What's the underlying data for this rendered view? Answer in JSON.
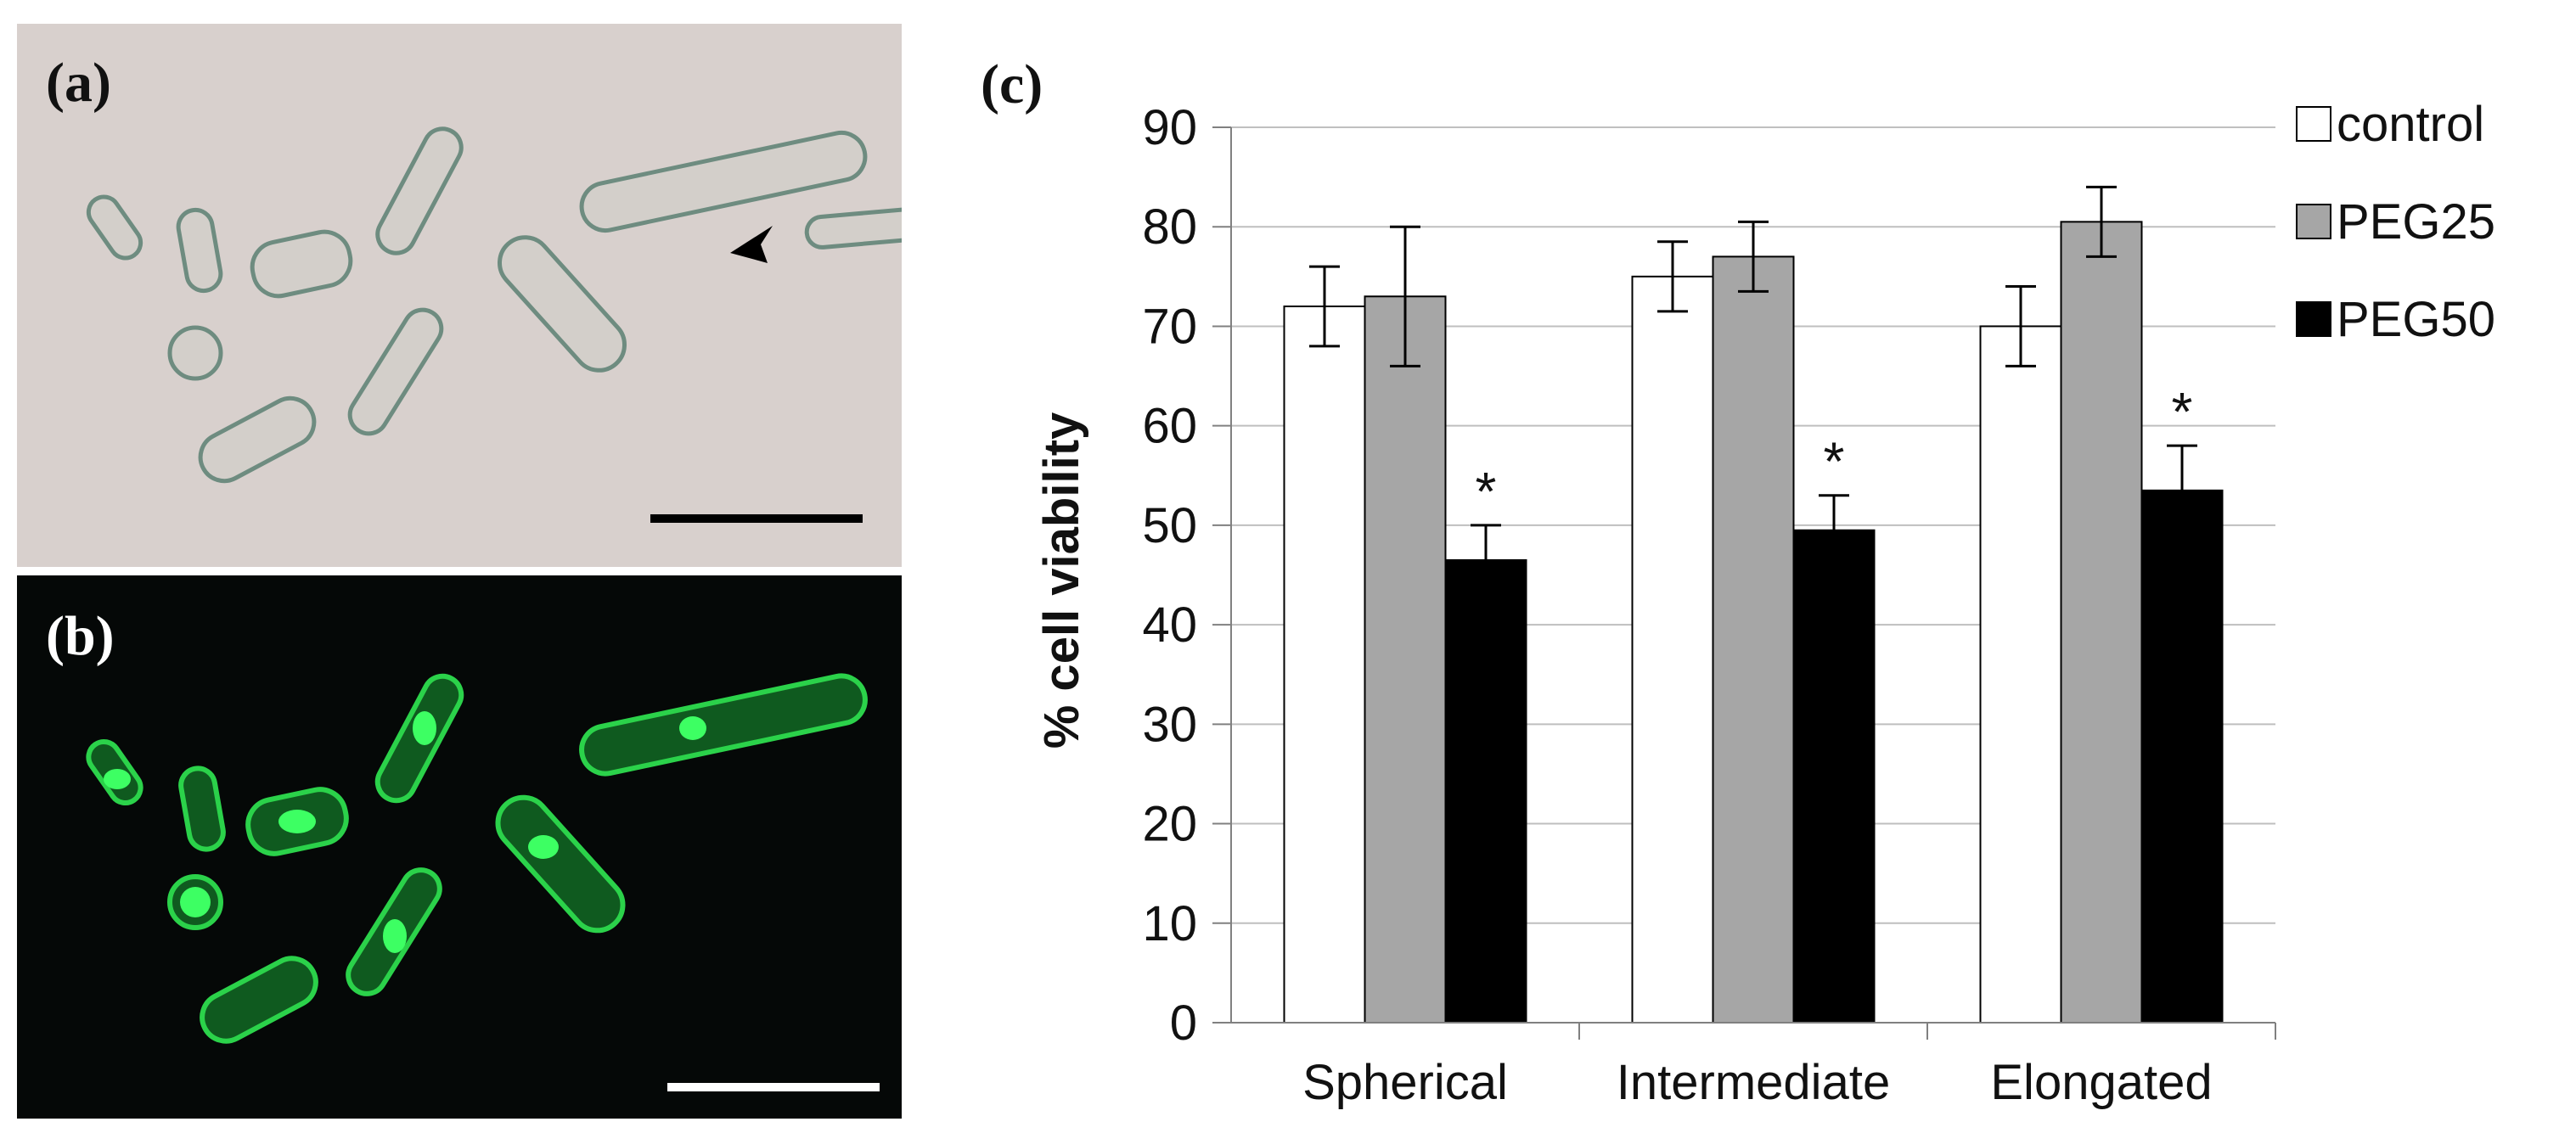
{
  "panels": {
    "a_label": "(a)",
    "b_label": "(b)",
    "c_label": "(c)"
  },
  "colors": {
    "control": "#ffffff",
    "PEG25": "#a6a6a6",
    "PEG50": "#000000",
    "brightfield_bg": "#d8d0cd",
    "fluorescence_bg": "#050807",
    "gfp": "#2bd24a"
  },
  "chart_data": {
    "type": "bar",
    "title": "",
    "xlabel": "",
    "ylabel": "% cell viability",
    "ylim": [
      0,
      90
    ],
    "yticks": [
      0,
      10,
      20,
      30,
      40,
      50,
      60,
      70,
      80,
      90
    ],
    "grid": true,
    "legend_position": "right",
    "categories": [
      "Spherical",
      "Intermediate",
      "Elongated"
    ],
    "series": [
      {
        "name": "control",
        "values": [
          72,
          75,
          70
        ],
        "errors": [
          4,
          3.5,
          4
        ]
      },
      {
        "name": "PEG25",
        "values": [
          73,
          77,
          80.5
        ],
        "errors": [
          7,
          3.5,
          3.5
        ]
      },
      {
        "name": "PEG50",
        "values": [
          46.5,
          49.5,
          53.5
        ],
        "errors": [
          3.5,
          3.5,
          4.5
        ]
      }
    ],
    "annotations": [
      {
        "category": "Spherical",
        "series": "PEG50",
        "text": "*"
      },
      {
        "category": "Intermediate",
        "series": "PEG50",
        "text": "*"
      },
      {
        "category": "Elongated",
        "series": "PEG50",
        "text": "*"
      }
    ]
  }
}
